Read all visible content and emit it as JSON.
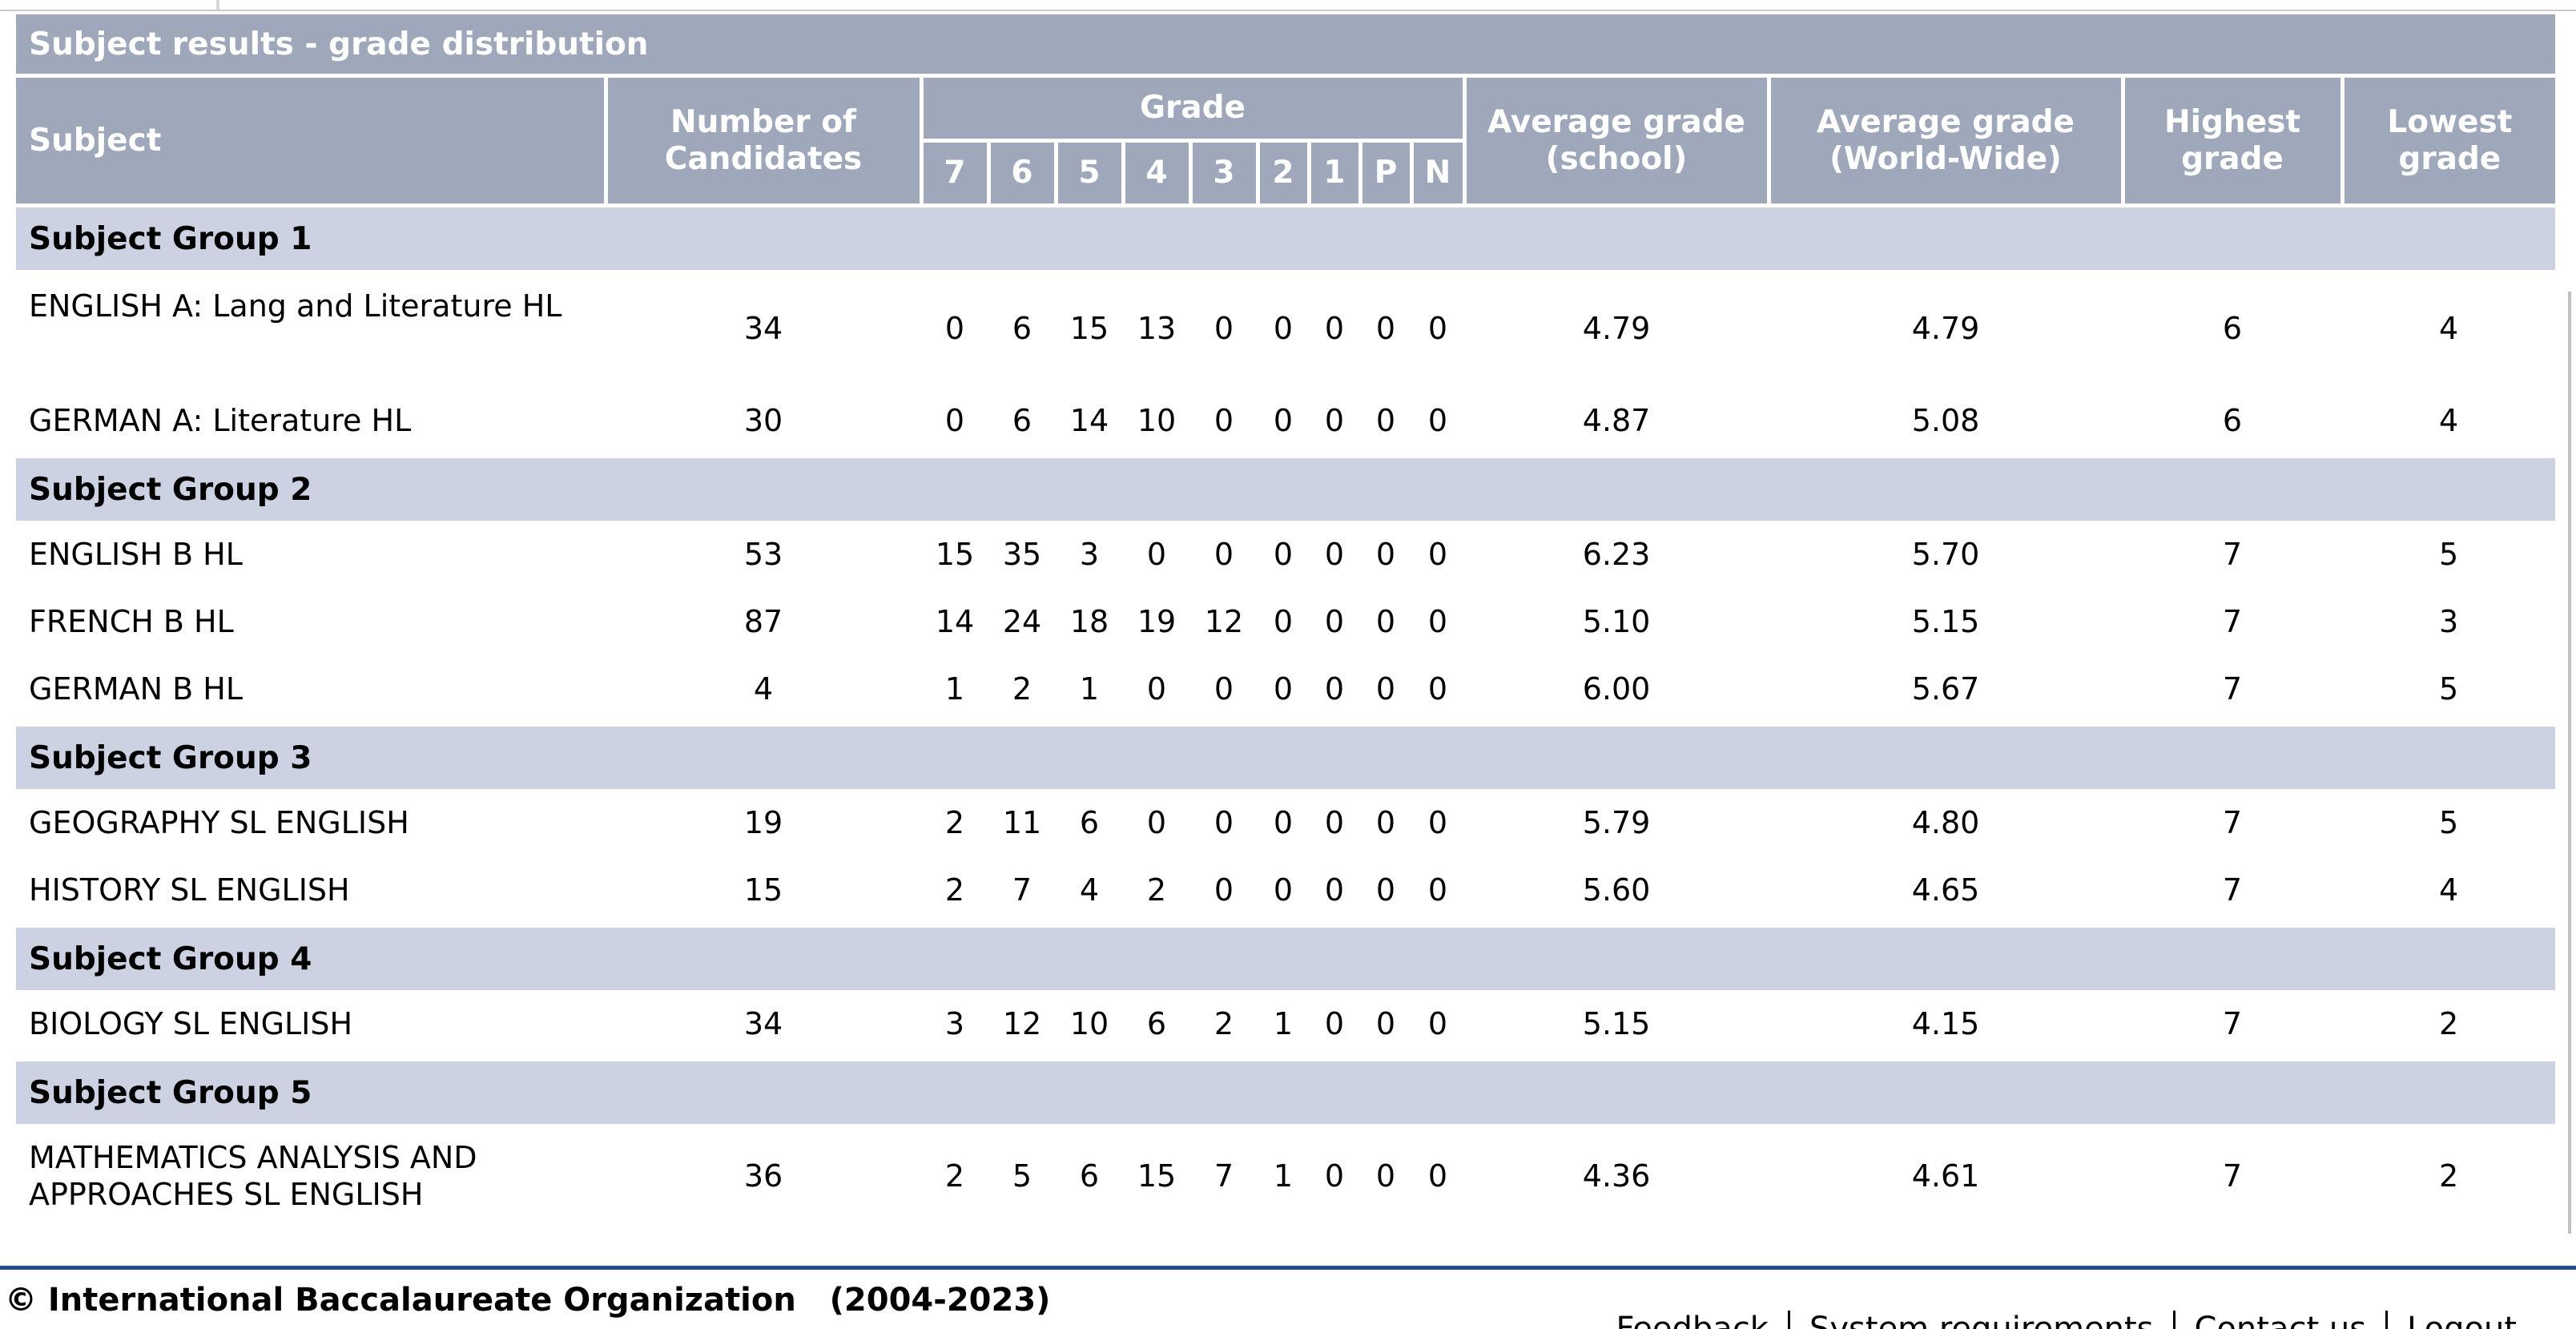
{
  "table": {
    "title": "Subject results - grade distribution",
    "headers": {
      "subject": "Subject",
      "candidates": "Number of Candidates",
      "grade": "Grade",
      "grade_cols": [
        "7",
        "6",
        "5",
        "4",
        "3",
        "2",
        "1",
        "P",
        "N"
      ],
      "avg_school": "Average grade (school)",
      "avg_world": "Average grade (World-Wide)",
      "highest": "Highest grade",
      "lowest": "Lowest grade"
    },
    "groups": [
      {
        "name": "Subject Group 1",
        "rows": [
          {
            "subject": "ENGLISH A: Lang and Literature HL",
            "candidates": "34",
            "grades": [
              "0",
              "6",
              "15",
              "13",
              "0",
              "0",
              "0",
              "0",
              "0"
            ],
            "avg_school": "4.79",
            "avg_world": "4.79",
            "highest": "6",
            "lowest": "4"
          },
          {
            "subject": "GERMAN A: Literature HL",
            "candidates": "30",
            "grades": [
              "0",
              "6",
              "14",
              "10",
              "0",
              "0",
              "0",
              "0",
              "0"
            ],
            "avg_school": "4.87",
            "avg_world": "5.08",
            "highest": "6",
            "lowest": "4"
          }
        ]
      },
      {
        "name": "Subject Group 2",
        "rows": [
          {
            "subject": "ENGLISH B HL",
            "candidates": "53",
            "grades": [
              "15",
              "35",
              "3",
              "0",
              "0",
              "0",
              "0",
              "0",
              "0"
            ],
            "avg_school": "6.23",
            "avg_world": "5.70",
            "highest": "7",
            "lowest": "5"
          },
          {
            "subject": "FRENCH B HL",
            "candidates": "87",
            "grades": [
              "14",
              "24",
              "18",
              "19",
              "12",
              "0",
              "0",
              "0",
              "0"
            ],
            "avg_school": "5.10",
            "avg_world": "5.15",
            "highest": "7",
            "lowest": "3"
          },
          {
            "subject": "GERMAN B HL",
            "candidates": "4",
            "grades": [
              "1",
              "2",
              "1",
              "0",
              "0",
              "0",
              "0",
              "0",
              "0"
            ],
            "avg_school": "6.00",
            "avg_world": "5.67",
            "highest": "7",
            "lowest": "5"
          }
        ]
      },
      {
        "name": "Subject Group 3",
        "rows": [
          {
            "subject": "GEOGRAPHY SL ENGLISH",
            "candidates": "19",
            "grades": [
              "2",
              "11",
              "6",
              "0",
              "0",
              "0",
              "0",
              "0",
              "0"
            ],
            "avg_school": "5.79",
            "avg_world": "4.80",
            "highest": "7",
            "lowest": "5"
          },
          {
            "subject": "HISTORY SL ENGLISH",
            "candidates": "15",
            "grades": [
              "2",
              "7",
              "4",
              "2",
              "0",
              "0",
              "0",
              "0",
              "0"
            ],
            "avg_school": "5.60",
            "avg_world": "4.65",
            "highest": "7",
            "lowest": "4"
          }
        ]
      },
      {
        "name": "Subject Group 4",
        "rows": [
          {
            "subject": "BIOLOGY SL ENGLISH",
            "candidates": "34",
            "grades": [
              "3",
              "12",
              "10",
              "6",
              "2",
              "1",
              "0",
              "0",
              "0"
            ],
            "avg_school": "5.15",
            "avg_world": "4.15",
            "highest": "7",
            "lowest": "2"
          }
        ]
      },
      {
        "name": "Subject Group 5",
        "rows": [
          {
            "subject": "MATHEMATICS ANALYSIS AND APPROACHES SL ENGLISH",
            "candidates": "36",
            "grades": [
              "2",
              "5",
              "6",
              "15",
              "7",
              "1",
              "0",
              "0",
              "0"
            ],
            "avg_school": "4.36",
            "avg_world": "4.61",
            "highest": "7",
            "lowest": "2"
          }
        ]
      }
    ]
  },
  "footer": {
    "copyright": "© International Baccalaureate Organization   (2004-2023)",
    "links": [
      "Feedback",
      "System requirements",
      "Contact us",
      "Logout"
    ]
  }
}
